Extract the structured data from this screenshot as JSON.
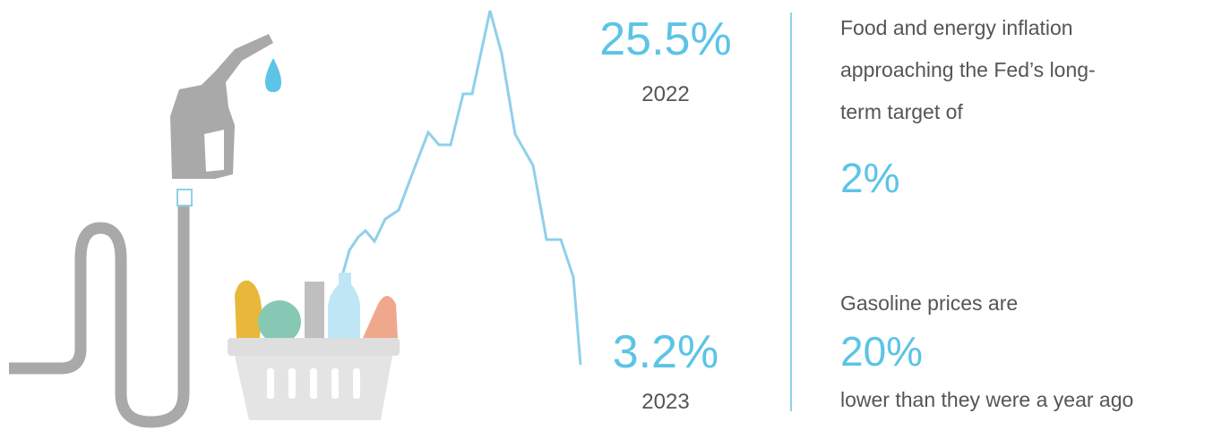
{
  "stats": {
    "peak": {
      "value": "25.5%",
      "year": "2022"
    },
    "latest": {
      "value": "3.2%",
      "year": "2023"
    }
  },
  "notes": [
    {
      "text": "Food and energy inflation approaching the Fed’s long-term target of",
      "figure": "2%"
    },
    {
      "intro": "Gasoline prices are",
      "figure": "20%",
      "text": "lower than they were a year ago"
    }
  ]
}
